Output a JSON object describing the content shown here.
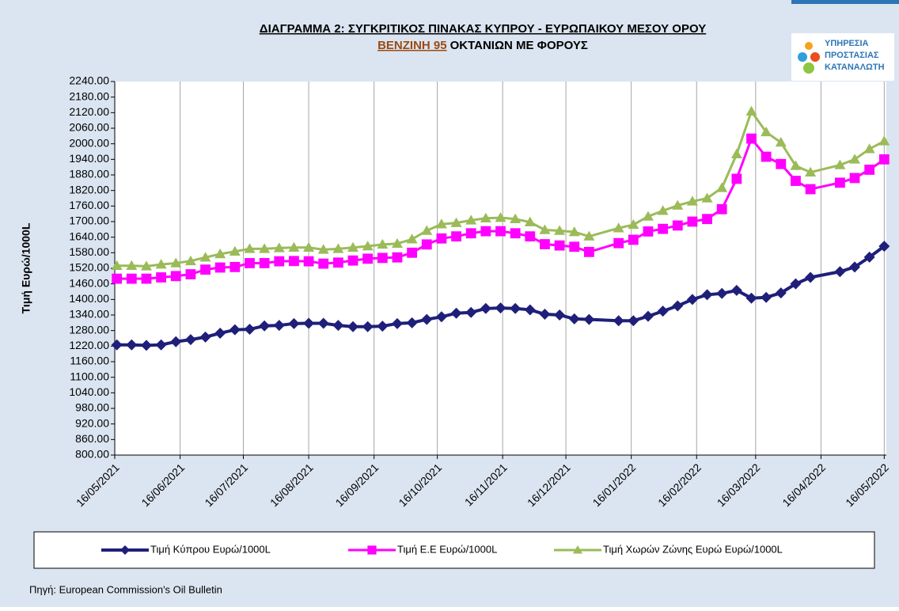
{
  "chart_data": {
    "type": "line",
    "title": "ΔΙΑΓΡΑΜΜΑ 2: ΣΥΓΚΡΙΤΙΚΟΣ ΠΙΝΑΚΑΣ ΚΥΠΡΟΥ - ΕΥΡΩΠΑΙΚΟΥ ΜΕΣΟΥ ΟΡΟΥ",
    "subtitle_highlight": "ΒΕΝΖΙΝΗ 95",
    "subtitle": "ΟΚΤΑΝΙΩΝ ΜΕ ΦΟΡΟΥΣ",
    "logo_text": [
      "ΥΠΗΡΕΣΙΑ",
      "ΠΡΟΣΤΑΣΙΑΣ",
      "ΚΑΤΑΝΑΛΩΤΗ"
    ],
    "ylabel": "Τιμή Ευρώ/1000L",
    "source": "Πηγή: European Commission's Oil Bulletin",
    "x": [
      "17/05/2021",
      "24/05/2021",
      "31/05/2021",
      "07/06/2021",
      "14/06/2021",
      "21/06/2021",
      "28/06/2021",
      "05/07/2021",
      "12/07/2021",
      "19/07/2021",
      "26/07/2021",
      "02/08/2021",
      "09/08/2021",
      "16/08/2021",
      "23/08/2021",
      "30/08/2021",
      "06/09/2021",
      "13/09/2021",
      "20/09/2021",
      "27/09/2021",
      "04/10/2021",
      "11/10/2021",
      "18/10/2021",
      "25/10/2021",
      "01/11/2021",
      "08/11/2021",
      "15/11/2021",
      "22/11/2021",
      "29/11/2021",
      "06/12/2021",
      "13/12/2021",
      "20/12/2021",
      "27/12/2021",
      "10/01/2022",
      "17/01/2022",
      "24/01/2022",
      "31/01/2022",
      "07/02/2022",
      "14/02/2022",
      "21/02/2022",
      "28/02/2022",
      "07/03/2022",
      "14/03/2022",
      "21/03/2022",
      "28/03/2022",
      "04/04/2022",
      "11/04/2022",
      "25/04/2022",
      "02/05/2022",
      "09/05/2022",
      "16/05/2022"
    ],
    "series": [
      {
        "name": "Τιμή Κύπρου Ευρώ/1000L",
        "color": "#1f1f7a",
        "marker": "diamond",
        "values": [
          1225,
          1225,
          1223,
          1225,
          1237,
          1245,
          1255,
          1270,
          1283,
          1285,
          1298,
          1300,
          1307,
          1308,
          1308,
          1300,
          1295,
          1295,
          1297,
          1307,
          1310,
          1323,
          1333,
          1347,
          1350,
          1365,
          1367,
          1365,
          1360,
          1343,
          1340,
          1325,
          1323,
          1318,
          1318,
          1335,
          1355,
          1375,
          1400,
          1418,
          1423,
          1435,
          1405,
          1408,
          1425,
          1460,
          1485,
          1507,
          1525,
          1563,
          1605
        ]
      },
      {
        "name": "Τιμή Ε.Ε Ευρώ/1000L",
        "color": "#ff00ff",
        "marker": "square",
        "values": [
          1480,
          1480,
          1480,
          1485,
          1490,
          1497,
          1515,
          1523,
          1525,
          1540,
          1540,
          1547,
          1548,
          1547,
          1538,
          1542,
          1550,
          1557,
          1560,
          1562,
          1580,
          1612,
          1635,
          1643,
          1655,
          1663,
          1663,
          1655,
          1643,
          1613,
          1608,
          1603,
          1583,
          1617,
          1630,
          1662,
          1672,
          1685,
          1700,
          1710,
          1748,
          1865,
          2020,
          1950,
          1922,
          1857,
          1825,
          1850,
          1868,
          1900,
          1940
        ]
      },
      {
        "name": "Τιμή Χωρών Ζώνης Ευρώ Ευρώ/1000L",
        "color": "#9bbb59",
        "marker": "triangle",
        "values": [
          1530,
          1530,
          1528,
          1535,
          1540,
          1548,
          1562,
          1575,
          1585,
          1595,
          1595,
          1598,
          1600,
          1600,
          1592,
          1595,
          1600,
          1605,
          1612,
          1615,
          1632,
          1665,
          1690,
          1695,
          1705,
          1713,
          1715,
          1710,
          1698,
          1668,
          1665,
          1660,
          1643,
          1675,
          1688,
          1720,
          1742,
          1762,
          1778,
          1790,
          1830,
          1960,
          2125,
          2045,
          2005,
          1915,
          1890,
          1918,
          1940,
          1980,
          2010
        ]
      }
    ],
    "xlim": [
      "16/05/2021",
      "17/05/2022"
    ],
    "xticks": [
      "16/05/2021",
      "16/06/2021",
      "16/07/2021",
      "16/08/2021",
      "16/09/2021",
      "16/10/2021",
      "16/11/2021",
      "16/12/2021",
      "16/01/2022",
      "16/02/2022",
      "16/03/2022",
      "16/04/2022",
      "16/05/2022"
    ],
    "ylim": [
      800,
      2240
    ],
    "yticks": [
      {
        "value": 800,
        "label": "800.00"
      },
      {
        "value": 860,
        "label": "860.00"
      },
      {
        "value": 920,
        "label": "920.00"
      },
      {
        "value": 980,
        "label": "980.00"
      },
      {
        "value": 1040,
        "label": "1040.00"
      },
      {
        "value": 1100,
        "label": "1100.00"
      },
      {
        "value": 1160,
        "label": "1160.00"
      },
      {
        "value": 1220,
        "label": "1220.00"
      },
      {
        "value": 1280,
        "label": "1280.00"
      },
      {
        "value": 1340,
        "label": "1340.00"
      },
      {
        "value": 1400,
        "label": "1400.00"
      },
      {
        "value": 1460,
        "label": "1460.00"
      },
      {
        "value": 1520,
        "label": "1520.00"
      },
      {
        "value": 1580,
        "label": "1580.00"
      },
      {
        "value": 1640,
        "label": "1640.00"
      },
      {
        "value": 1700,
        "label": "1700.00"
      },
      {
        "value": 1760,
        "label": "1760.00"
      },
      {
        "value": 1820,
        "label": "1820.00"
      },
      {
        "value": 1880,
        "label": "1880.00"
      },
      {
        "value": 1940,
        "label": "1940.00"
      },
      {
        "value": 2000,
        "label": "2000.00"
      },
      {
        "value": 2060,
        "label": "2060.00"
      },
      {
        "value": 2120,
        "label": "2120.00"
      },
      {
        "value": 2180,
        "label": "2180.00"
      },
      {
        "value": 2240,
        "label": "2240.00"
      }
    ],
    "grid": "x",
    "legend": "bottom"
  }
}
